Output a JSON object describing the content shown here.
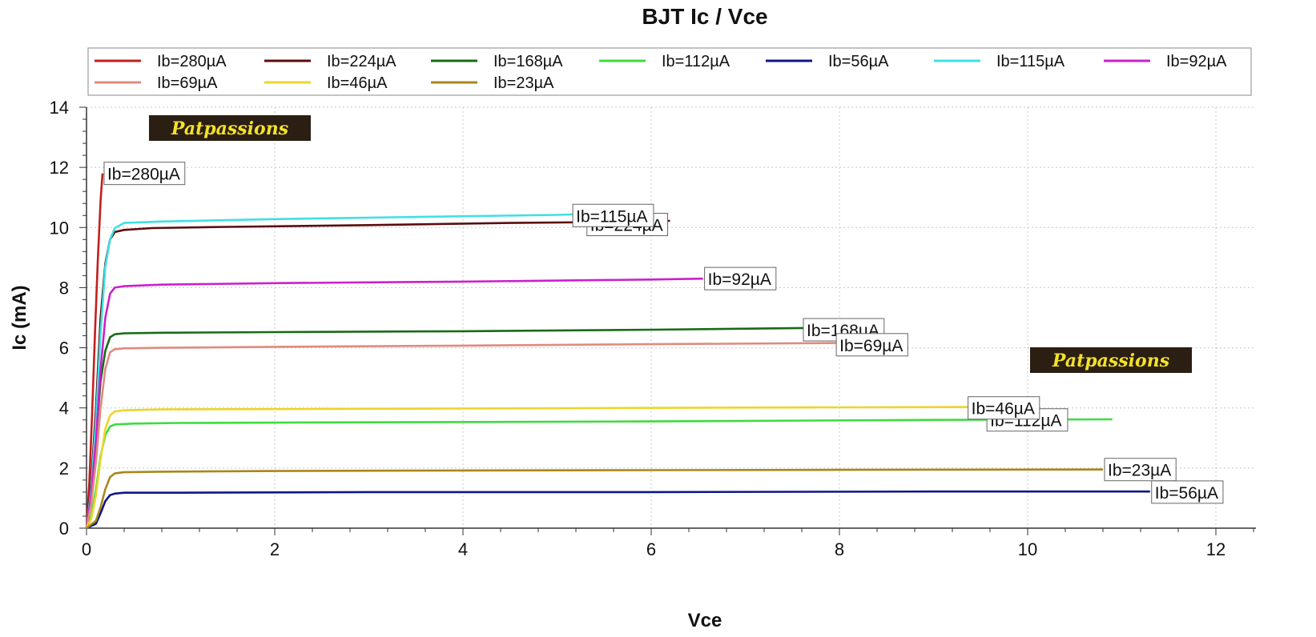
{
  "chart_data": {
    "type": "line",
    "title": "BJT Ic / Vce",
    "xlabel": "Vce",
    "ylabel": "Ic (mA)",
    "xlim": [
      0,
      12.4
    ],
    "ylim": [
      0,
      14
    ],
    "x_ticks": [
      "0",
      "2",
      "4",
      "6",
      "8",
      "10",
      "12"
    ],
    "y_ticks": [
      "0",
      "2",
      "4",
      "6",
      "8",
      "10",
      "12",
      "14"
    ],
    "grid": true,
    "legend_position": "top",
    "series": [
      {
        "name": "Ib=280µA",
        "color": "#c0201e",
        "x": [
          0,
          0.03,
          0.06,
          0.09,
          0.12,
          0.15,
          0.17
        ],
        "y": [
          0,
          1.5,
          3.8,
          6.5,
          8.9,
          10.9,
          11.8
        ]
      },
      {
        "name": "Ib=224µA",
        "color": "#5a0d0d",
        "x": [
          0,
          0.05,
          0.1,
          0.15,
          0.2,
          0.25,
          0.3,
          0.4,
          0.7,
          1.5,
          3,
          4.5,
          5.5,
          6.2
        ],
        "y": [
          0,
          1.5,
          4,
          7,
          8.8,
          9.6,
          9.85,
          9.92,
          9.98,
          10.02,
          10.08,
          10.15,
          10.18,
          10.22
        ]
      },
      {
        "name": "Ib=168µA",
        "color": "#176b17",
        "x": [
          0,
          0.05,
          0.1,
          0.15,
          0.2,
          0.25,
          0.3,
          0.4,
          0.8,
          2,
          4,
          6,
          7.7
        ],
        "y": [
          0,
          1.2,
          3,
          4.9,
          5.9,
          6.35,
          6.45,
          6.48,
          6.5,
          6.52,
          6.55,
          6.6,
          6.66
        ]
      },
      {
        "name": "Ib=112µA",
        "color": "#3ddc3d",
        "x": [
          0,
          0.05,
          0.1,
          0.15,
          0.2,
          0.25,
          0.3,
          0.5,
          1,
          3,
          6,
          9,
          10.9
        ],
        "y": [
          0,
          0.4,
          1.3,
          2.4,
          3.1,
          3.38,
          3.45,
          3.48,
          3.5,
          3.52,
          3.55,
          3.6,
          3.62
        ]
      },
      {
        "name": "Ib=56µA",
        "color": "#0c1688",
        "x": [
          0,
          0.1,
          0.15,
          0.2,
          0.25,
          0.3,
          0.4,
          1,
          3,
          6,
          9,
          11.3
        ],
        "y": [
          0,
          0.15,
          0.5,
          0.9,
          1.1,
          1.15,
          1.18,
          1.18,
          1.2,
          1.2,
          1.22,
          1.22
        ]
      },
      {
        "name": "Ib=115µA",
        "color": "#3fe0e4",
        "x": [
          0,
          0.05,
          0.1,
          0.15,
          0.2,
          0.25,
          0.3,
          0.4,
          0.8,
          2,
          3.5,
          5,
          5.2
        ],
        "y": [
          0,
          1.3,
          3.6,
          6.5,
          8.7,
          9.6,
          9.98,
          10.15,
          10.2,
          10.28,
          10.35,
          10.42,
          10.44
        ]
      },
      {
        "name": "Ib=92µA",
        "color": "#cc1fcc",
        "x": [
          0,
          0.05,
          0.1,
          0.15,
          0.2,
          0.25,
          0.3,
          0.4,
          0.8,
          2,
          4,
          6,
          6.55
        ],
        "y": [
          0,
          1.1,
          2.9,
          5.3,
          7.0,
          7.8,
          8.0,
          8.05,
          8.1,
          8.15,
          8.2,
          8.27,
          8.3
        ]
      },
      {
        "name": "Ib=69µA",
        "color": "#e08a80",
        "x": [
          0,
          0.05,
          0.1,
          0.15,
          0.2,
          0.25,
          0.3,
          0.4,
          0.8,
          2,
          4,
          6,
          8
        ],
        "y": [
          0,
          0.8,
          2.2,
          4.0,
          5.3,
          5.85,
          5.95,
          5.98,
          6.0,
          6.03,
          6.07,
          6.12,
          6.16
        ]
      },
      {
        "name": "Ib=46µA",
        "color": "#ecd52a",
        "x": [
          0,
          0.05,
          0.1,
          0.15,
          0.2,
          0.25,
          0.3,
          0.4,
          0.8,
          2,
          4,
          6,
          8,
          9.4
        ],
        "y": [
          0,
          0.3,
          1.1,
          2.3,
          3.3,
          3.75,
          3.88,
          3.92,
          3.95,
          3.96,
          3.98,
          4.0,
          4.02,
          4.03
        ]
      },
      {
        "name": "Ib=23µA",
        "color": "#a8871a",
        "x": [
          0,
          0.1,
          0.15,
          0.2,
          0.25,
          0.3,
          0.4,
          0.8,
          2,
          4,
          6,
          8,
          10.8
        ],
        "y": [
          0,
          0.25,
          0.7,
          1.3,
          1.7,
          1.82,
          1.86,
          1.88,
          1.9,
          1.92,
          1.93,
          1.94,
          1.95
        ]
      }
    ],
    "end_labels": [
      {
        "text": "Ib=280µA",
        "x": 0.17,
        "y": 11.8
      },
      {
        "text": "Ib=224µA",
        "x": 5.3,
        "y": 10.1
      },
      {
        "text": "Ib=115µA",
        "x": 5.15,
        "y": 10.4
      },
      {
        "text": "Ib=92µA",
        "x": 6.55,
        "y": 8.3
      },
      {
        "text": "Ib=168µA",
        "x": 7.6,
        "y": 6.6
      },
      {
        "text": "Ib=69µA",
        "x": 7.95,
        "y": 6.1
      },
      {
        "text": "Ib=112µA",
        "x": 9.55,
        "y": 3.6
      },
      {
        "text": "Ib=46µA",
        "x": 9.35,
        "y": 4.0
      },
      {
        "text": "Ib=23µA",
        "x": 10.8,
        "y": 1.95
      },
      {
        "text": "Ib=56µA",
        "x": 11.3,
        "y": 1.2
      }
    ],
    "watermarks": [
      "Patpassions",
      "Patpassions"
    ]
  }
}
